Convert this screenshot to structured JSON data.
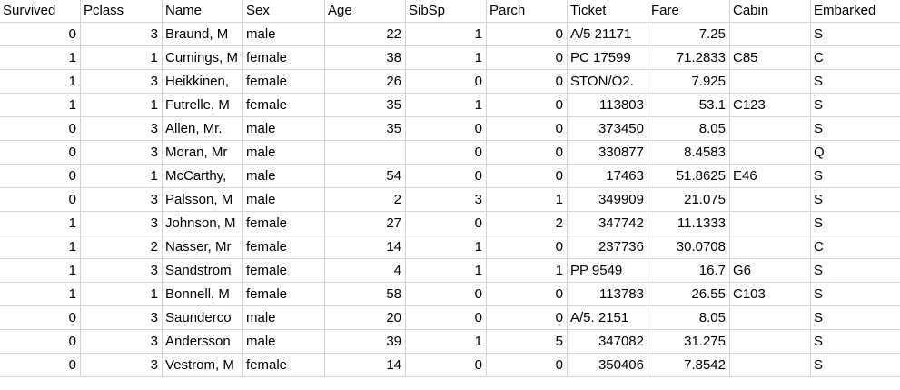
{
  "sheet": {
    "headers": [
      "Survived",
      "Pclass",
      "Name",
      "Sex",
      "Age",
      "SibSp",
      "Parch",
      "Ticket",
      "Fare",
      "Cabin",
      "Embarked"
    ],
    "rows": [
      [
        "0",
        "3",
        "Braund, M",
        "male",
        "22",
        "1",
        "0",
        "A/5 21171",
        "7.25",
        "",
        "S"
      ],
      [
        "1",
        "1",
        "Cumings, M",
        "female",
        "38",
        "1",
        "0",
        "PC 17599",
        "71.2833",
        "C85",
        "C"
      ],
      [
        "1",
        "3",
        "Heikkinen,",
        "female",
        "26",
        "0",
        "0",
        "STON/O2.",
        "7.925",
        "",
        "S"
      ],
      [
        "1",
        "1",
        "Futrelle, M",
        "female",
        "35",
        "1",
        "0",
        "113803",
        "53.1",
        "C123",
        "S"
      ],
      [
        "0",
        "3",
        "Allen, Mr.",
        "male",
        "35",
        "0",
        "0",
        "373450",
        "8.05",
        "",
        "S"
      ],
      [
        "0",
        "3",
        "Moran, Mr",
        "male",
        "",
        "0",
        "0",
        "330877",
        "8.4583",
        "",
        "Q"
      ],
      [
        "0",
        "1",
        "McCarthy,",
        "male",
        "54",
        "0",
        "0",
        "17463",
        "51.8625",
        "E46",
        "S"
      ],
      [
        "0",
        "3",
        "Palsson, M",
        "male",
        "2",
        "3",
        "1",
        "349909",
        "21.075",
        "",
        "S"
      ],
      [
        "1",
        "3",
        "Johnson, M",
        "female",
        "27",
        "0",
        "2",
        "347742",
        "11.1333",
        "",
        "S"
      ],
      [
        "1",
        "2",
        "Nasser, Mr",
        "female",
        "14",
        "1",
        "0",
        "237736",
        "30.0708",
        "",
        "C"
      ],
      [
        "1",
        "3",
        "Sandstrom",
        "female",
        "4",
        "1",
        "1",
        "PP 9549",
        "16.7",
        "G6",
        "S"
      ],
      [
        "1",
        "1",
        "Bonnell, M",
        "female",
        "58",
        "0",
        "0",
        "113783",
        "26.55",
        "C103",
        "S"
      ],
      [
        "0",
        "3",
        "Saunderco",
        "male",
        "20",
        "0",
        "0",
        "A/5. 2151",
        "8.05",
        "",
        "S"
      ],
      [
        "0",
        "3",
        "Andersson",
        "male",
        "39",
        "1",
        "5",
        "347082",
        "31.275",
        "",
        "S"
      ],
      [
        "0",
        "3",
        "Vestrom, M",
        "female",
        "14",
        "0",
        "0",
        "350406",
        "7.8542",
        "",
        "S"
      ]
    ]
  }
}
